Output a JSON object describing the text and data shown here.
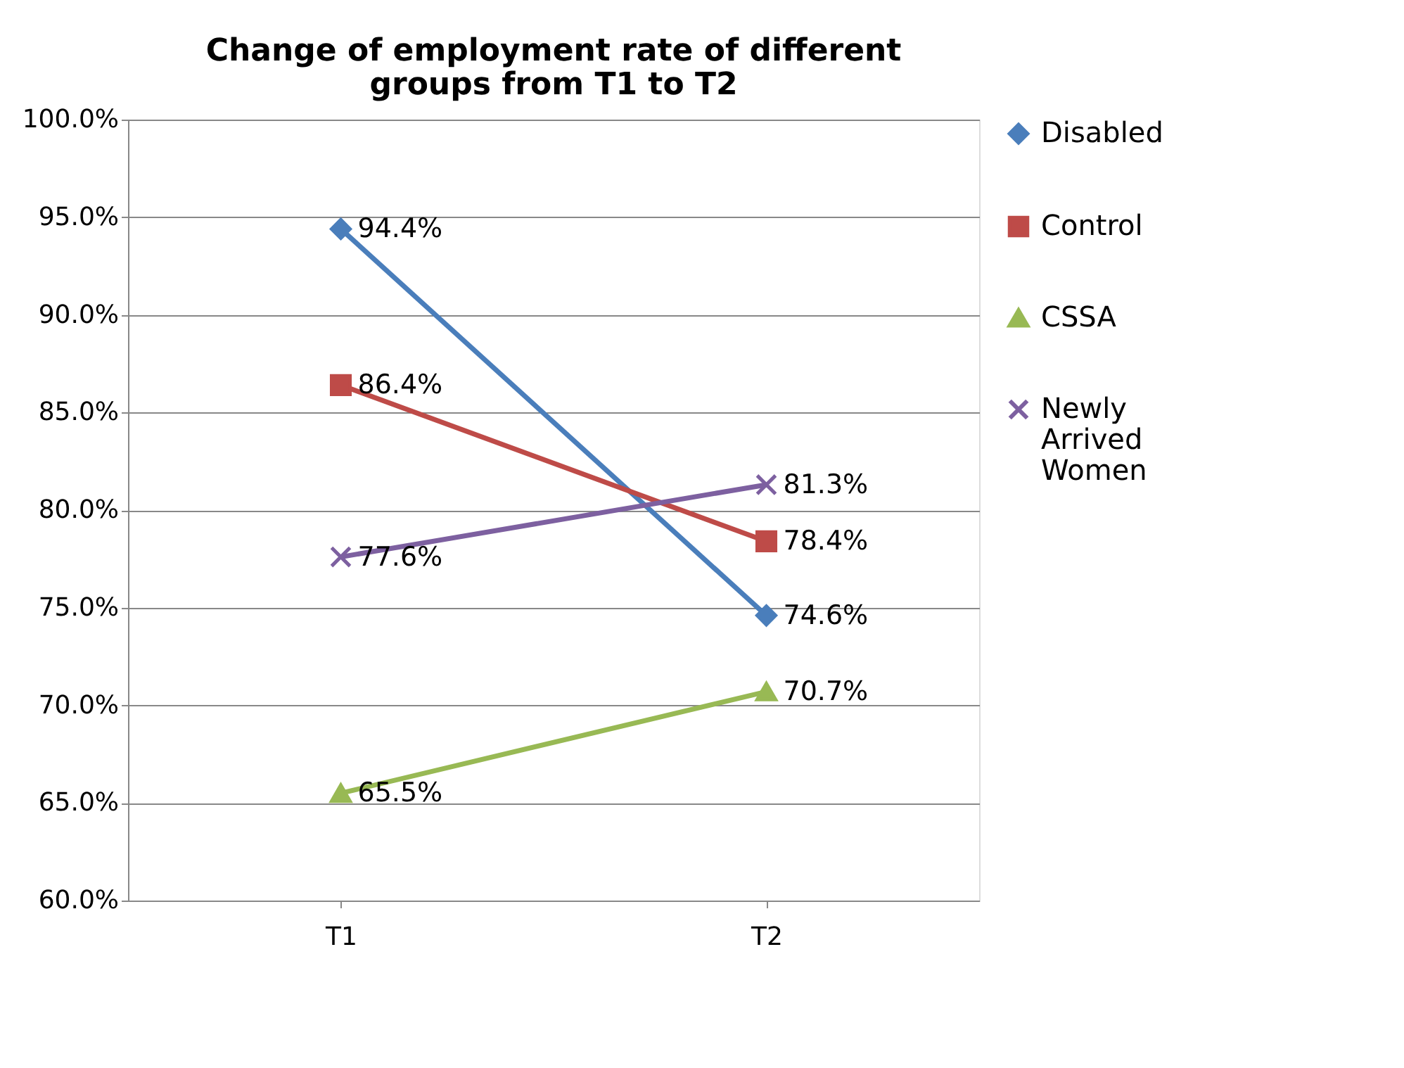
{
  "chart_data": {
    "type": "line",
    "title": "Change of employment rate of different groups from T1 to T2",
    "categories": [
      "T1",
      "T2"
    ],
    "series": [
      {
        "name": "Disabled",
        "color": "#4a7ebb",
        "marker": "diamond",
        "values": [
          94.4,
          74.6
        ],
        "value_labels": [
          "94.4%",
          "74.6%"
        ]
      },
      {
        "name": "Control",
        "color": "#be4b48",
        "marker": "square",
        "values": [
          86.4,
          78.4
        ],
        "value_labels": [
          "86.4%",
          "78.4%"
        ]
      },
      {
        "name": "CSSA",
        "color": "#98b954",
        "marker": "triangle",
        "values": [
          65.5,
          70.7
        ],
        "value_labels": [
          "65.5%",
          "70.7%"
        ]
      },
      {
        "name": "Newly Arrived Women",
        "color": "#7d60a0",
        "marker": "cross",
        "values": [
          77.6,
          81.3
        ],
        "value_labels": [
          "77.6%",
          "81.3%"
        ]
      }
    ],
    "ylim": [
      60,
      100
    ],
    "yticks": [
      {
        "value": 60,
        "label": "60.0%"
      },
      {
        "value": 65,
        "label": "65.0%"
      },
      {
        "value": 70,
        "label": "70.0%"
      },
      {
        "value": 75,
        "label": "75.0%"
      },
      {
        "value": 80,
        "label": "80.0%"
      },
      {
        "value": 85,
        "label": "85.0%"
      },
      {
        "value": 90,
        "label": "90.0%"
      },
      {
        "value": 95,
        "label": "95.0%"
      },
      {
        "value": 100,
        "label": "100.0%"
      }
    ],
    "grid": "y",
    "legend": "right",
    "line_style": "solid"
  }
}
